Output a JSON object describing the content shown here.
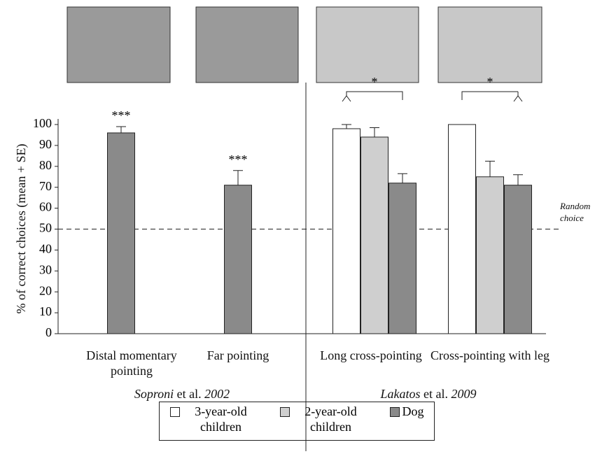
{
  "chart_data": {
    "type": "bar",
    "y_label": "% of correct choices (mean + SE)",
    "categories": [
      "Distal momentary pointing",
      "Far pointing",
      "Long cross-pointing",
      "Cross-pointing with leg"
    ],
    "series": [
      {
        "name": "3-year-old children",
        "color": "#ffffff",
        "values": [
          null,
          null,
          98,
          100
        ],
        "errors": [
          null,
          null,
          2,
          0
        ]
      },
      {
        "name": "2-year-old children",
        "color": "#cfcfcf",
        "values": [
          null,
          null,
          94,
          75
        ],
        "errors": [
          null,
          null,
          4.5,
          7.5
        ]
      },
      {
        "name": "Dog",
        "color": "#8a8a8a",
        "values": [
          96,
          71,
          72,
          71
        ],
        "errors": [
          3,
          7,
          4.5,
          5
        ]
      }
    ],
    "ylim": [
      0,
      100
    ],
    "yticks": [
      0,
      10,
      20,
      30,
      40,
      50,
      60,
      70,
      80,
      90,
      100
    ],
    "reference_line": {
      "value": 50,
      "label": "Random choice"
    },
    "annotations": [
      "***",
      "***",
      "*",
      "*"
    ],
    "group_labels": [
      {
        "author": "Soproni",
        "etal": "et al.",
        "year": "2002"
      },
      {
        "author": "Lakatos",
        "etal": "et al.",
        "year": "2009"
      }
    ]
  }
}
